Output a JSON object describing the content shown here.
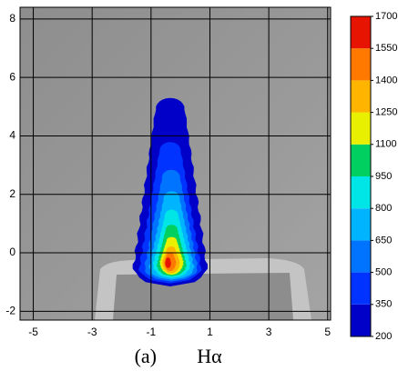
{
  "chart_data": {
    "type": "contour",
    "caption_label": "(a)",
    "caption": "Hα",
    "xlim": [
      -5.45,
      5.1
    ],
    "ylim": [
      -2.3,
      8.4
    ],
    "xticks": [
      -5,
      -3,
      -1,
      1,
      3,
      5
    ],
    "yticks": [
      -2,
      0,
      2,
      4,
      6,
      8
    ],
    "grid": true,
    "colorbar": {
      "ticks": [
        200,
        350,
        500,
        650,
        800,
        950,
        1100,
        1250,
        1400,
        1550,
        1700
      ],
      "colors": [
        "#0000c8",
        "#0033ff",
        "#0073ff",
        "#00b4ff",
        "#00e6e6",
        "#00d060",
        "#e8f000",
        "#ffb400",
        "#ff7800",
        "#e61400"
      ]
    }
  }
}
